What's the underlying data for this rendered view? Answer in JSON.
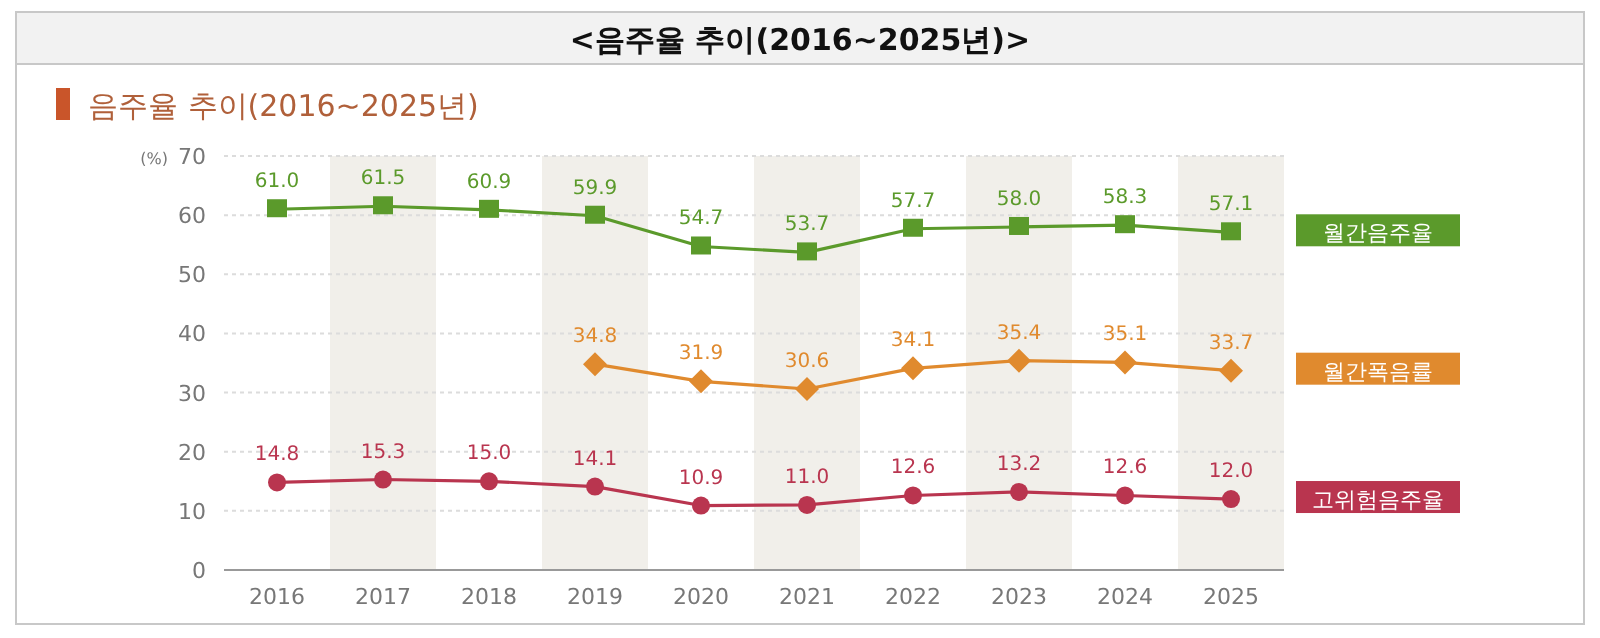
{
  "chart_data": {
    "type": "line",
    "title": "<음주율  추이(2016~2025년)>",
    "subtitle": "음주율 추이(2016~2025년)",
    "ylabel": "(%)",
    "categories": [
      "2016",
      "2017",
      "2018",
      "2019",
      "2020",
      "2021",
      "2022",
      "2023",
      "2024",
      "2025"
    ],
    "series": [
      {
        "name": "월간음주율",
        "color": "#5b9a2b",
        "marker": "square",
        "values": [
          61.0,
          61.5,
          60.9,
          59.9,
          54.7,
          53.7,
          57.7,
          58.0,
          58.3,
          57.1
        ],
        "value_labels": [
          "61.0",
          "61.5",
          "60.9",
          "59.9",
          "54.7",
          "53.7",
          "57.7",
          "58.0",
          "58.3",
          "57.1"
        ]
      },
      {
        "name": "월간폭음률",
        "color": "#e08a2e",
        "marker": "diamond",
        "values": [
          null,
          null,
          null,
          34.8,
          31.9,
          30.6,
          34.1,
          35.4,
          35.1,
          33.7
        ],
        "value_labels": [
          null,
          null,
          null,
          "34.8",
          "31.9",
          "30.6",
          "34.1",
          "35.4",
          "35.1",
          "33.7"
        ]
      },
      {
        "name": "고위험음주율",
        "color": "#b9354f",
        "marker": "circle",
        "values": [
          14.8,
          15.3,
          15.0,
          14.1,
          10.9,
          11.0,
          12.6,
          13.2,
          12.6,
          12.0
        ],
        "value_labels": [
          "14.8",
          "15.3",
          "15.0",
          "14.1",
          "10.9",
          "11.0",
          "12.6",
          "13.2",
          "12.6",
          "12.0"
        ]
      }
    ],
    "bands": [
      {
        "axis": "x",
        "from": "2017",
        "to": "2017",
        "color": "#f1efea"
      },
      {
        "axis": "x",
        "from": "2019",
        "to": "2019",
        "color": "#f1efea"
      },
      {
        "axis": "x",
        "from": "2021",
        "to": "2021",
        "color": "#f1efea"
      },
      {
        "axis": "x",
        "from": "2023",
        "to": "2023",
        "color": "#f1efea"
      },
      {
        "axis": "x",
        "from": "2025",
        "to": "2025",
        "color": "#f1efea"
      }
    ],
    "ylim": [
      0,
      70
    ],
    "yticks": [
      0,
      10,
      20,
      30,
      40,
      50,
      60,
      70
    ],
    "grid": "y",
    "legend": "right",
    "line_style": "solid"
  }
}
